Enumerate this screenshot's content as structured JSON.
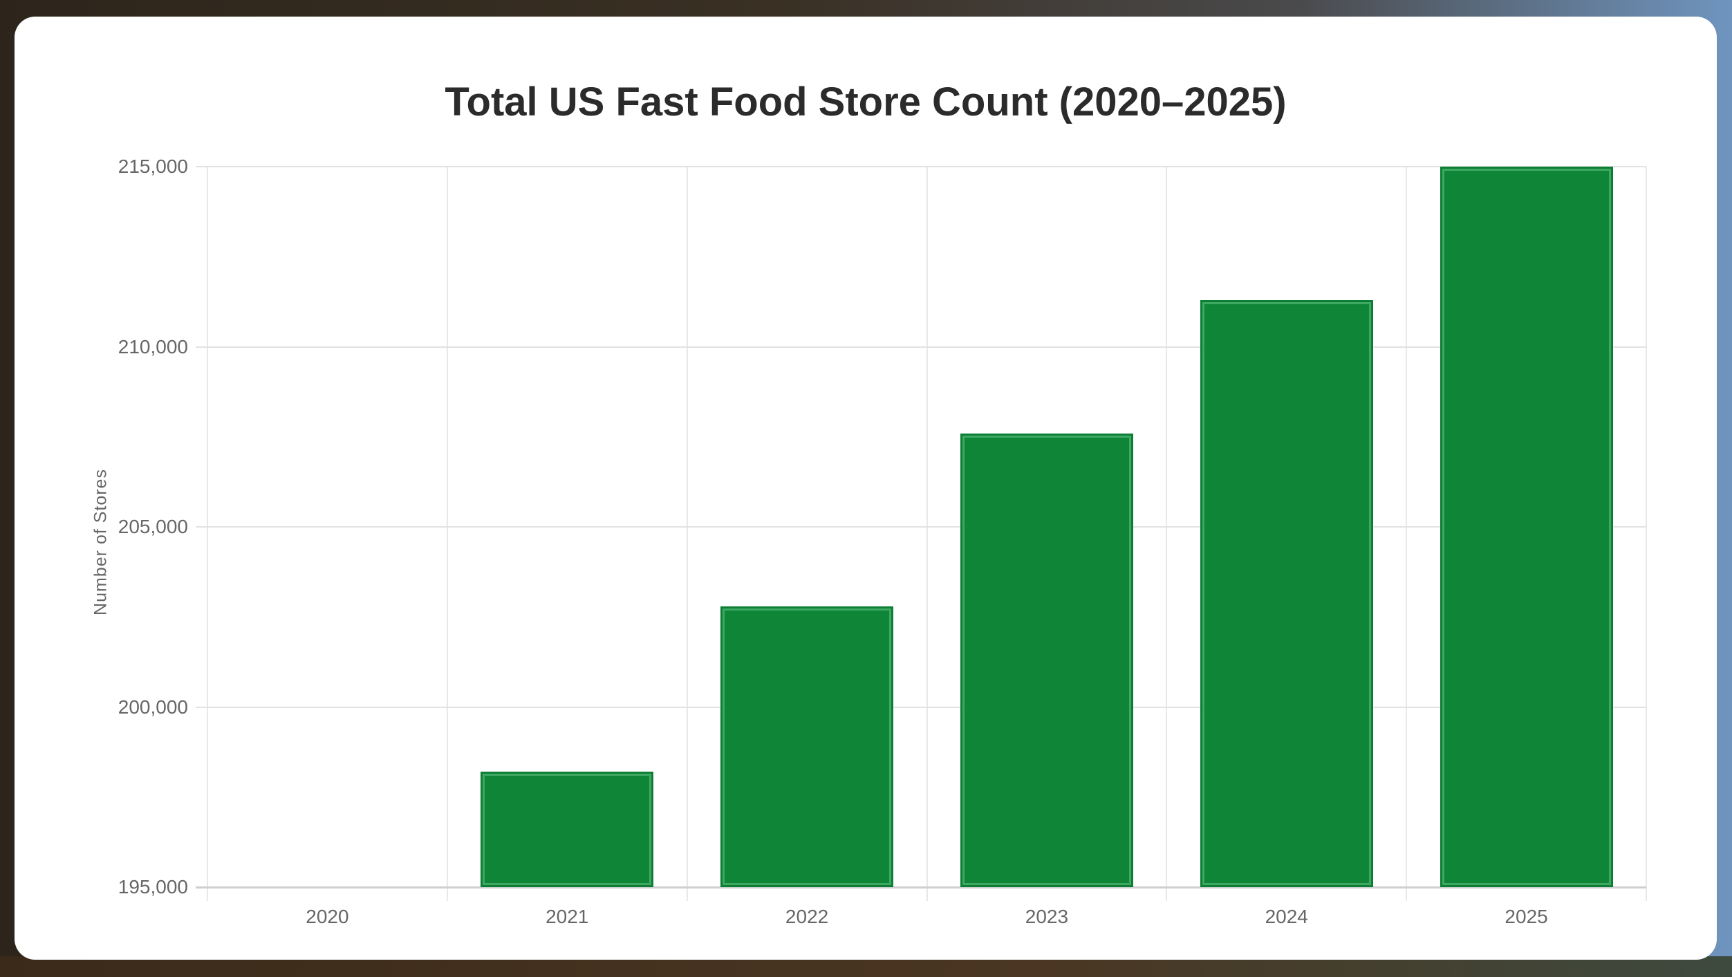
{
  "chart_data": {
    "type": "bar",
    "title": "Total US Fast Food Store Count (2020–2025)",
    "xlabel": "",
    "ylabel": "Number of Stores",
    "categories": [
      "2020",
      "2021",
      "2022",
      "2023",
      "2024",
      "2025"
    ],
    "values": [
      195000,
      198200,
      202800,
      207600,
      211300,
      215000
    ],
    "ylim": [
      195000,
      215000
    ],
    "yticks": [
      195000,
      200000,
      205000,
      210000,
      215000
    ],
    "ytick_labels": [
      "195,000",
      "200,000",
      "205,000",
      "210,000",
      "215,000"
    ],
    "grid": true,
    "legend": null,
    "bar_color": "#0e8537",
    "bar_border_color": "#3ea862"
  },
  "colors": {
    "card_background": "#ffffff",
    "title_text": "#2b2b2b",
    "axis_text": "#666666",
    "gridline": "#e2e2e2"
  }
}
